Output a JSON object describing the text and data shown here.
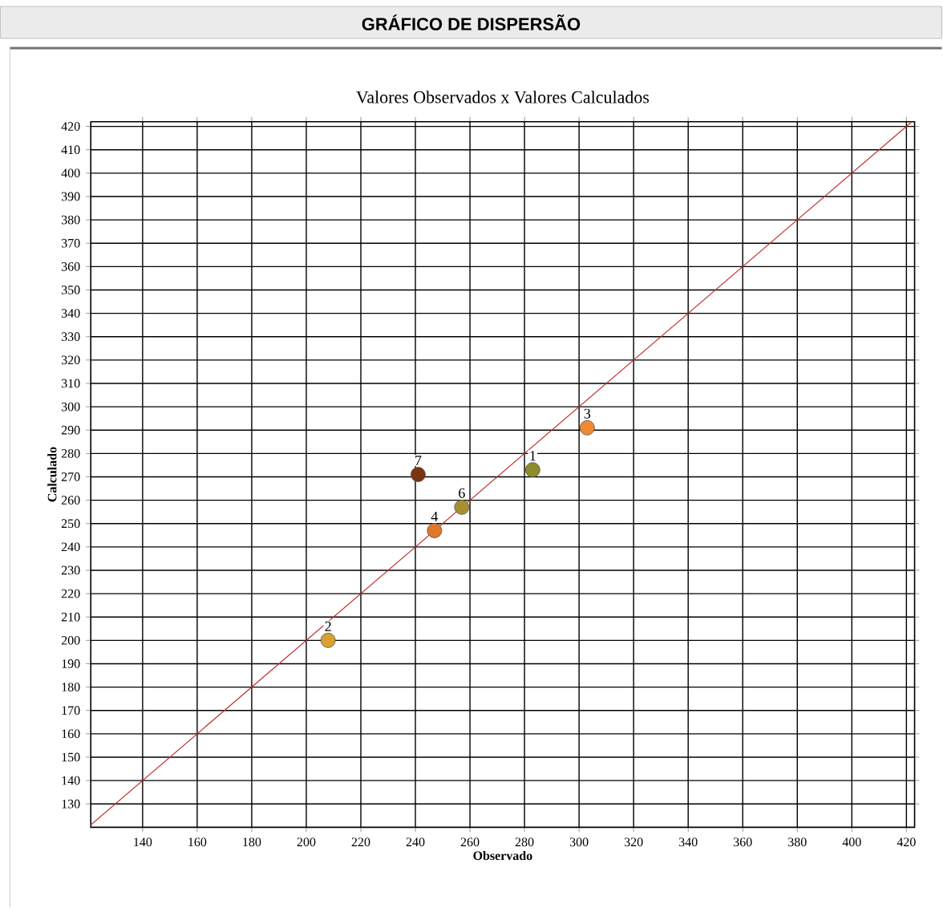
{
  "chart_data": {
    "type": "scatter",
    "title": "GRÁFICO DE DISPERSÃO",
    "subtitle": "Valores Observados x Valores Calculados",
    "xlabel": "Observado",
    "ylabel": "Calculado",
    "xlim": [
      121,
      423
    ],
    "ylim": [
      120,
      422
    ],
    "xticks": [
      140,
      160,
      180,
      200,
      220,
      240,
      260,
      280,
      300,
      320,
      340,
      360,
      380,
      400,
      420
    ],
    "yticks": [
      130,
      140,
      150,
      160,
      170,
      180,
      190,
      200,
      210,
      220,
      230,
      240,
      250,
      260,
      270,
      280,
      290,
      300,
      310,
      320,
      330,
      340,
      350,
      360,
      370,
      380,
      390,
      400,
      410,
      420
    ],
    "grid": true,
    "series": [
      {
        "marker": "circle",
        "x": [
          283,
          208,
          303,
          247,
          257,
          241
        ],
        "values": [
          273,
          200,
          291,
          247,
          257,
          271
        ],
        "colors": [
          "#8c8c2a",
          "#d8a030",
          "#f08a30",
          "#e07828",
          "#a89030",
          "#7a3410"
        ]
      },
      {
        "type": "line",
        "x": [
          121,
          422
        ],
        "values": [
          121,
          422
        ],
        "color": "#c03030"
      }
    ],
    "annotations": [
      {
        "text": "1",
        "x": 283,
        "y": 273
      },
      {
        "text": "2",
        "x": 208,
        "y": 200
      },
      {
        "text": "3",
        "x": 303,
        "y": 291
      },
      {
        "text": "4",
        "x": 247,
        "y": 247
      },
      {
        "text": "6",
        "x": 257,
        "y": 257
      },
      {
        "text": "7",
        "x": 241,
        "y": 271
      }
    ]
  }
}
